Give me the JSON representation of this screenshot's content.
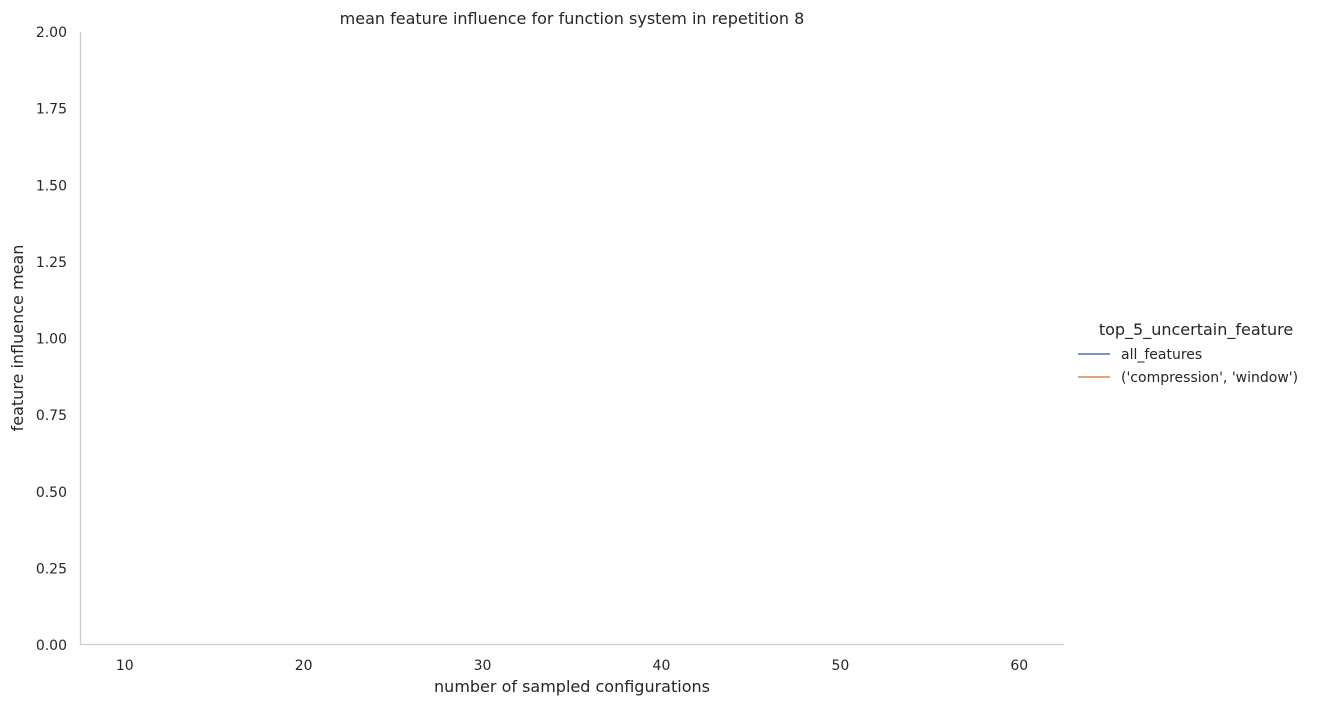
{
  "chart_data": {
    "type": "line",
    "title": "mean feature influence for function system in repetition 8",
    "xlabel": "number of sampled configurations",
    "ylabel": "feature influence mean",
    "xlim": [
      7.5,
      62.5
    ],
    "ylim": [
      0,
      2
    ],
    "x_ticks": [
      "10",
      "20",
      "30",
      "40",
      "50",
      "60"
    ],
    "x_tick_values": [
      10,
      20,
      30,
      40,
      50,
      60
    ],
    "y_ticks": [
      "0.00",
      "0.25",
      "0.50",
      "0.75",
      "1.00",
      "1.25",
      "1.50",
      "1.75",
      "2.00"
    ],
    "y_tick_values": [
      0,
      0.25,
      0.5,
      0.75,
      1.0,
      1.25,
      1.5,
      1.75,
      2.0
    ],
    "grid": false,
    "legend": {
      "title": "top_5_uncertain_feature",
      "placement": "right"
    },
    "series": [
      {
        "name": "all_features",
        "color": "#4c72b0",
        "x": [],
        "y": []
      },
      {
        "name": "('compression', 'window')",
        "color": "#dd8452",
        "x": [],
        "y": []
      }
    ]
  }
}
